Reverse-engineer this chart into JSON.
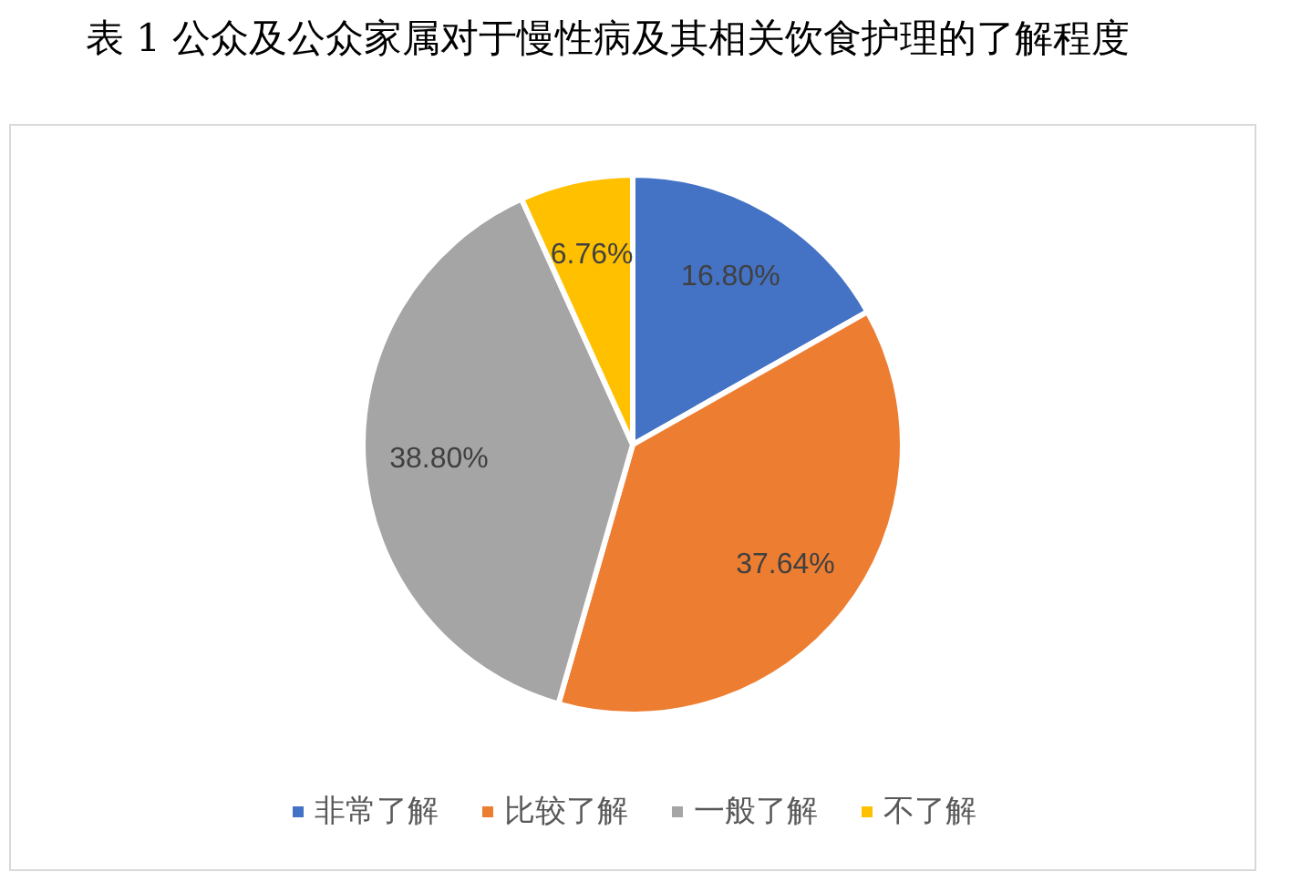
{
  "chart_data": {
    "type": "pie",
    "title": "表 1 公众及公众家属对于慢性病及其相关饮食护理的了解程度",
    "categories": [
      "非常了解",
      "比较了解",
      "一般了解",
      "不了解"
    ],
    "values": [
      16.8,
      37.64,
      38.8,
      6.76
    ],
    "colors": [
      "#4472c4",
      "#ed7d31",
      "#a5a5a5",
      "#ffc000"
    ],
    "value_labels": [
      "16.80%",
      "37.64%",
      "38.80%",
      "6.76%"
    ],
    "legend": "bottom"
  }
}
